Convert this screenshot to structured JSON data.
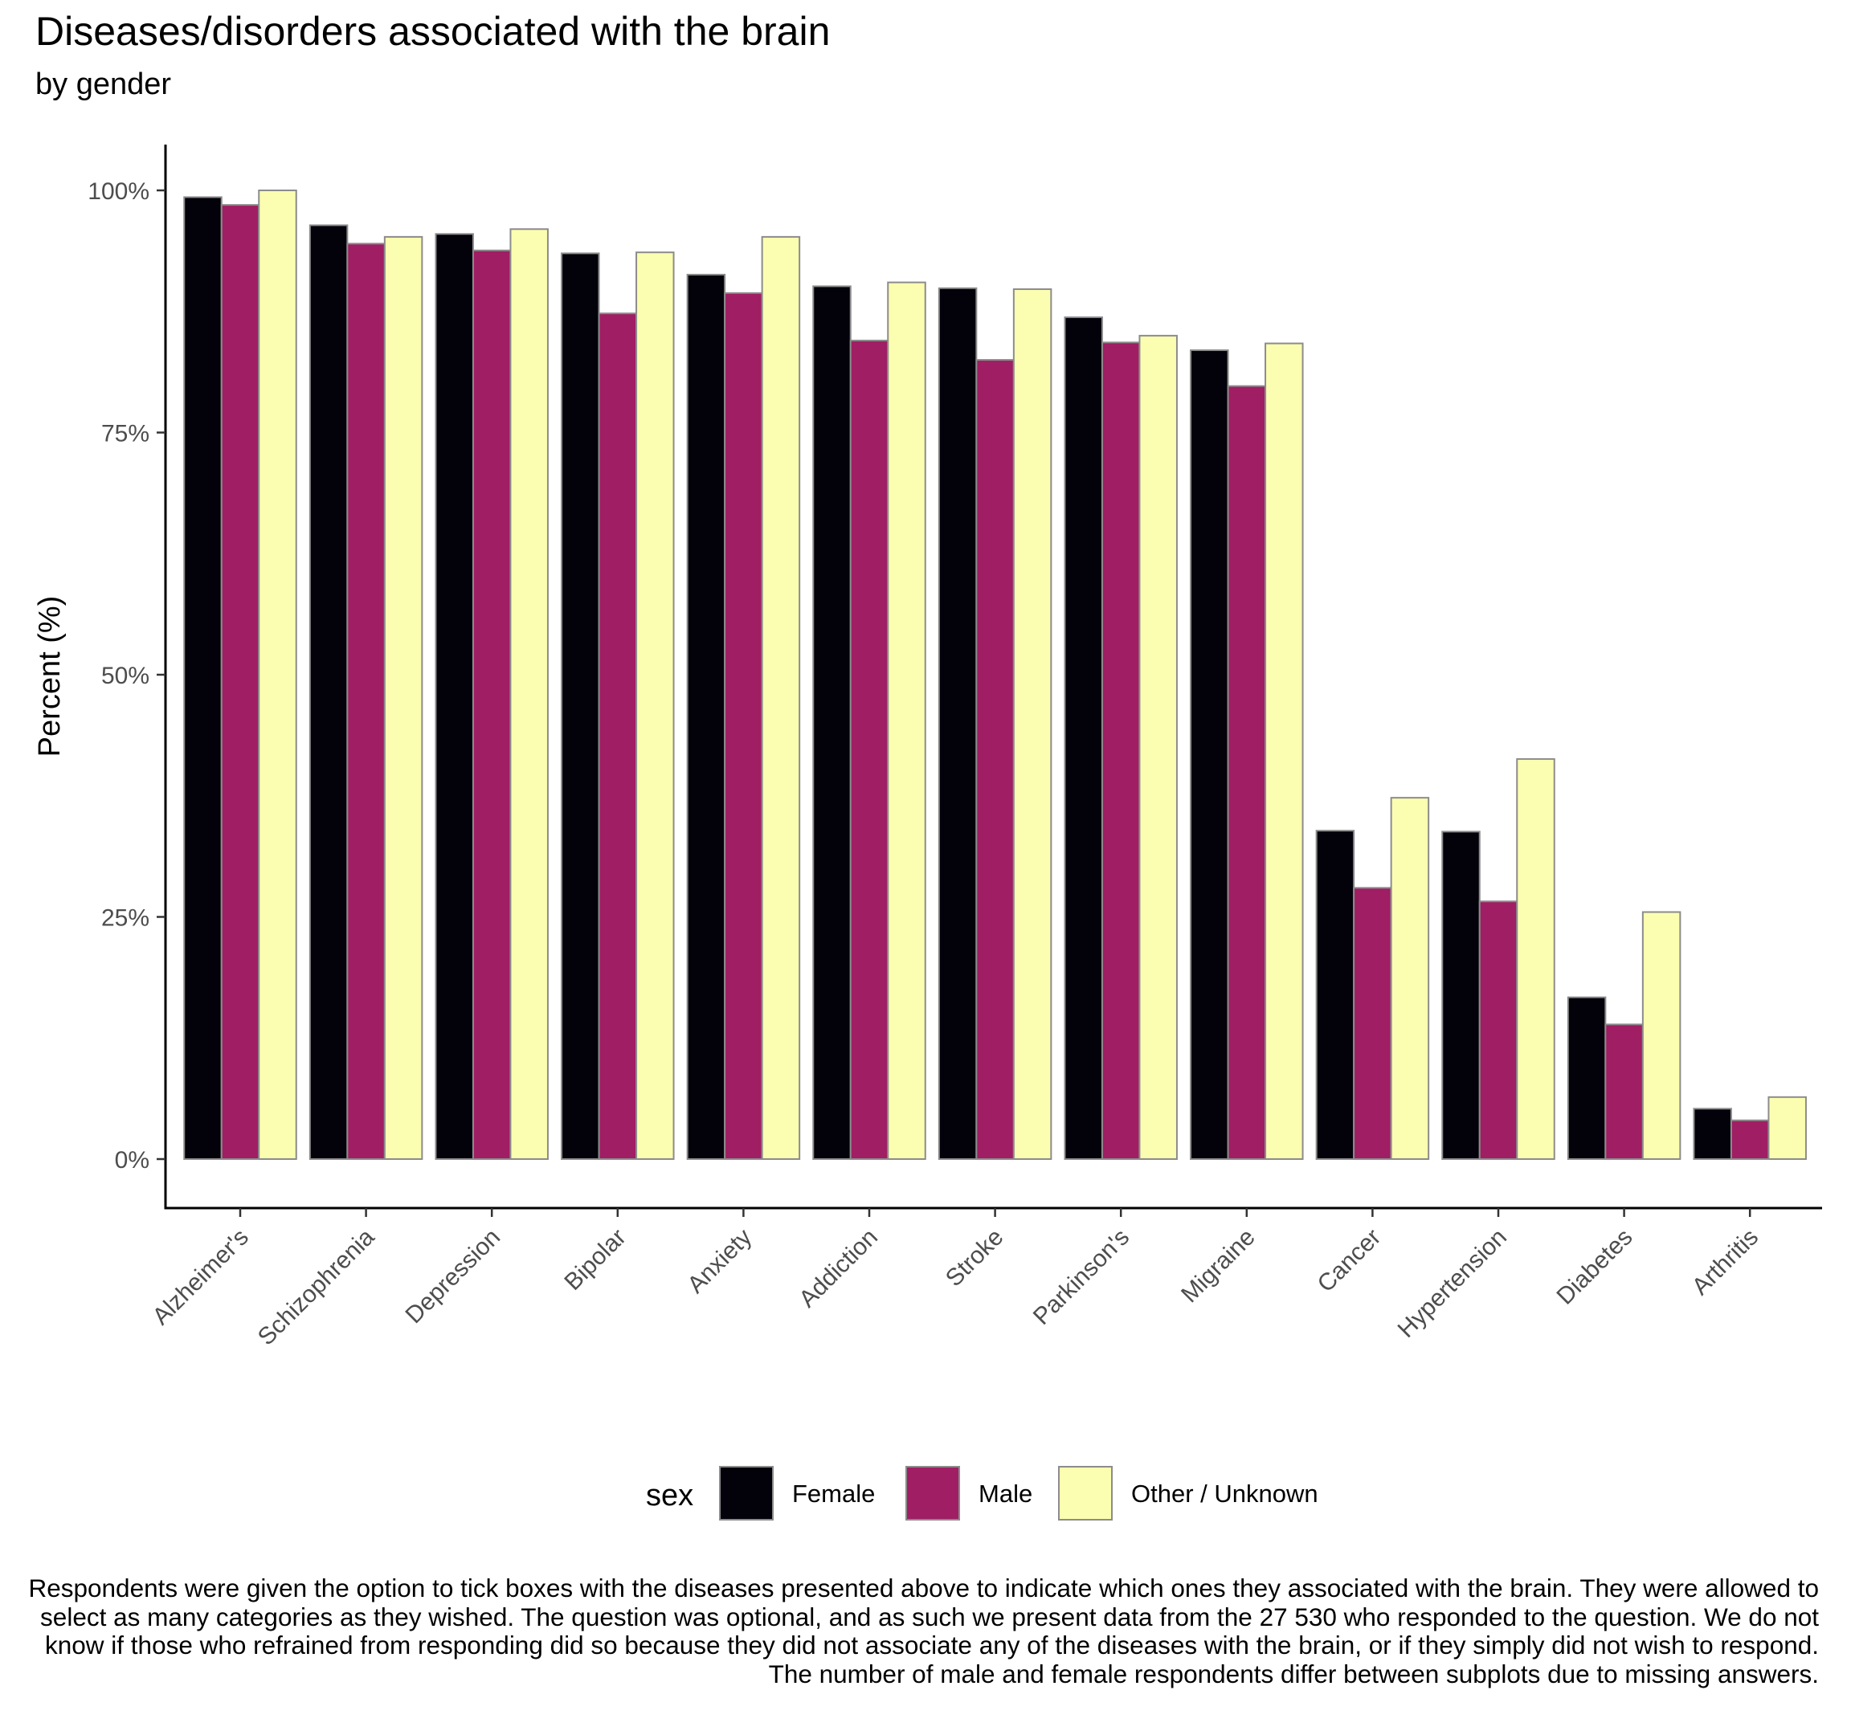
{
  "chart_data": {
    "type": "bar",
    "title": "Diseases/disorders associated with the brain",
    "subtitle": "by gender",
    "xlabel": "",
    "ylabel": "Percent (%)",
    "ylim": [
      0,
      1.05
    ],
    "yticks": [
      0,
      0.25,
      0.5,
      0.75,
      1.0
    ],
    "ytick_labels": [
      "0%",
      "25%",
      "50%",
      "75%",
      "100%"
    ],
    "categories": [
      "Alzheimer's",
      "Schizophrenia",
      "Depression",
      "Bipolar",
      "Anxiety",
      "Addiction",
      "Stroke",
      "Parkinson's",
      "Migraine",
      "Cancer",
      "Hypertension",
      "Diabetes",
      "Arthritis"
    ],
    "legend_title": "sex",
    "legend_position": "bottom",
    "grid": false,
    "series": [
      {
        "name": "Female",
        "color": "#03020a",
        "values": [
          0.993,
          0.964,
          0.955,
          0.935,
          0.913,
          0.901,
          0.899,
          0.869,
          0.835,
          0.339,
          0.338,
          0.167,
          0.052
        ]
      },
      {
        "name": "Male",
        "color": "#a01e63",
        "values": [
          0.985,
          0.945,
          0.938,
          0.873,
          0.894,
          0.845,
          0.825,
          0.843,
          0.798,
          0.28,
          0.266,
          0.139,
          0.04
        ]
      },
      {
        "name": "Other / Unknown",
        "color": "#fbfdb0",
        "values": [
          1.0,
          0.952,
          0.96,
          0.936,
          0.952,
          0.905,
          0.898,
          0.85,
          0.842,
          0.373,
          0.413,
          0.255,
          0.064
        ]
      }
    ]
  },
  "caption": "Respondents were given the option to tick boxes with the diseases presented above to indicate which ones they associated with the brain. They were allowed to select as many categories as they wished. The question was optional, and as such we present data from the 27 530 who responded to the question. We do not know if those who refrained from responding did so because they did not associate any of the diseases with the brain, or if they simply did not wish to respond. The number of male and female respondents differ between subplots due to missing answers."
}
